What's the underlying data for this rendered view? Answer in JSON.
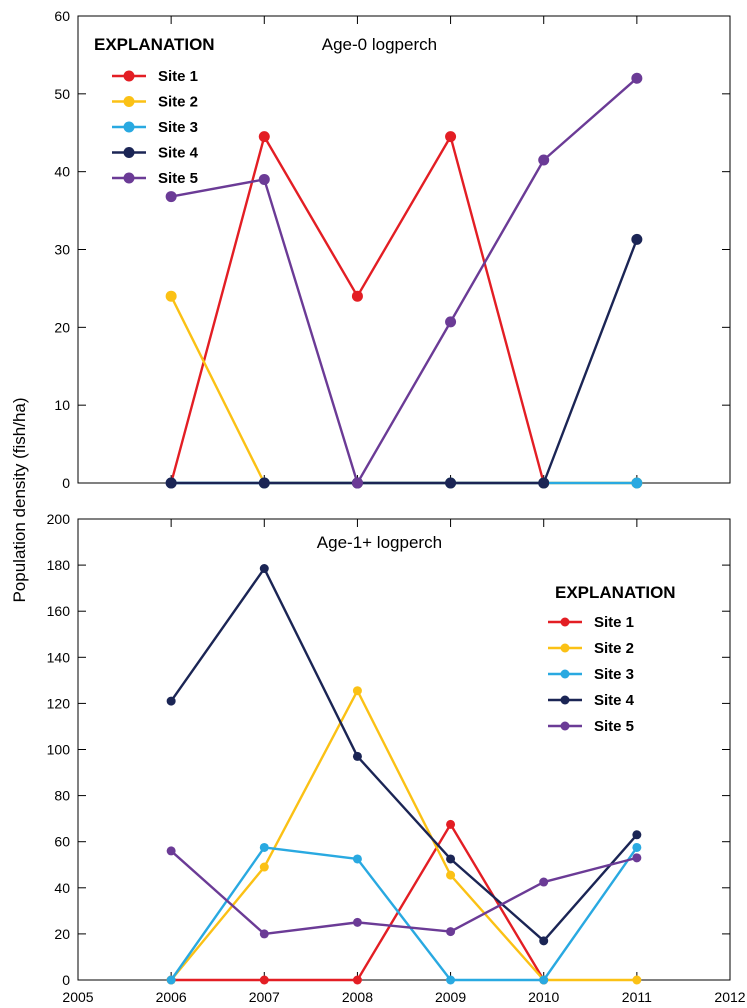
{
  "figure": {
    "ylabel": "Population density (fish/ha)"
  },
  "chart_data": [
    {
      "type": "line",
      "title": "Age-0 logperch",
      "xlabel": "",
      "ylabel": "Population density (fish/ha)",
      "xlim": [
        2005,
        2012
      ],
      "ylim": [
        0,
        60
      ],
      "xticks": [
        2005,
        2006,
        2007,
        2008,
        2009,
        2010,
        2011,
        2012
      ],
      "yticks": [
        0,
        10,
        20,
        30,
        40,
        50,
        60
      ],
      "legend_title": "EXPLANATION",
      "legend_position": "top-left",
      "x": [
        2006,
        2007,
        2008,
        2009,
        2010,
        2011
      ],
      "series": [
        {
          "name": "Site 1",
          "color": "#e31e24",
          "values": [
            0,
            44.5,
            24,
            44.5,
            0,
            null
          ]
        },
        {
          "name": "Site 2",
          "color": "#fbc115",
          "values": [
            24,
            0,
            0,
            0,
            0,
            0
          ]
        },
        {
          "name": "Site 3",
          "color": "#29a9e1",
          "values": [
            0,
            0,
            0,
            0,
            0,
            0
          ]
        },
        {
          "name": "Site 4",
          "color": "#1b2555",
          "values": [
            0,
            0,
            0,
            0,
            0,
            31.3
          ]
        },
        {
          "name": "Site 5",
          "color": "#6b3b96",
          "values": [
            36.8,
            39,
            0,
            20.7,
            41.5,
            52
          ]
        }
      ]
    },
    {
      "type": "line",
      "title": "Age-1+ logperch",
      "xlabel": "",
      "ylabel": "Population density (fish/ha)",
      "xlim": [
        2005,
        2012
      ],
      "ylim": [
        0,
        200
      ],
      "xticks": [
        2005,
        2006,
        2007,
        2008,
        2009,
        2010,
        2011,
        2012
      ],
      "yticks": [
        0,
        20,
        40,
        60,
        80,
        100,
        120,
        140,
        160,
        180,
        200
      ],
      "legend_title": "EXPLANATION",
      "legend_position": "right",
      "x": [
        2006,
        2007,
        2008,
        2009,
        2010,
        2011
      ],
      "series": [
        {
          "name": "Site 1",
          "color": "#e31e24",
          "values": [
            0,
            0,
            0,
            67.5,
            0,
            null
          ]
        },
        {
          "name": "Site 2",
          "color": "#fbc115",
          "values": [
            0,
            49,
            125.5,
            45.5,
            0,
            0
          ]
        },
        {
          "name": "Site 3",
          "color": "#29a9e1",
          "values": [
            0,
            57.5,
            52.5,
            0,
            0,
            57.5
          ]
        },
        {
          "name": "Site 4",
          "color": "#1b2555",
          "values": [
            121,
            178.5,
            97,
            52.5,
            17,
            63
          ]
        },
        {
          "name": "Site 5",
          "color": "#6b3b96",
          "values": [
            56,
            20,
            25,
            21,
            42.5,
            53
          ]
        }
      ]
    }
  ]
}
